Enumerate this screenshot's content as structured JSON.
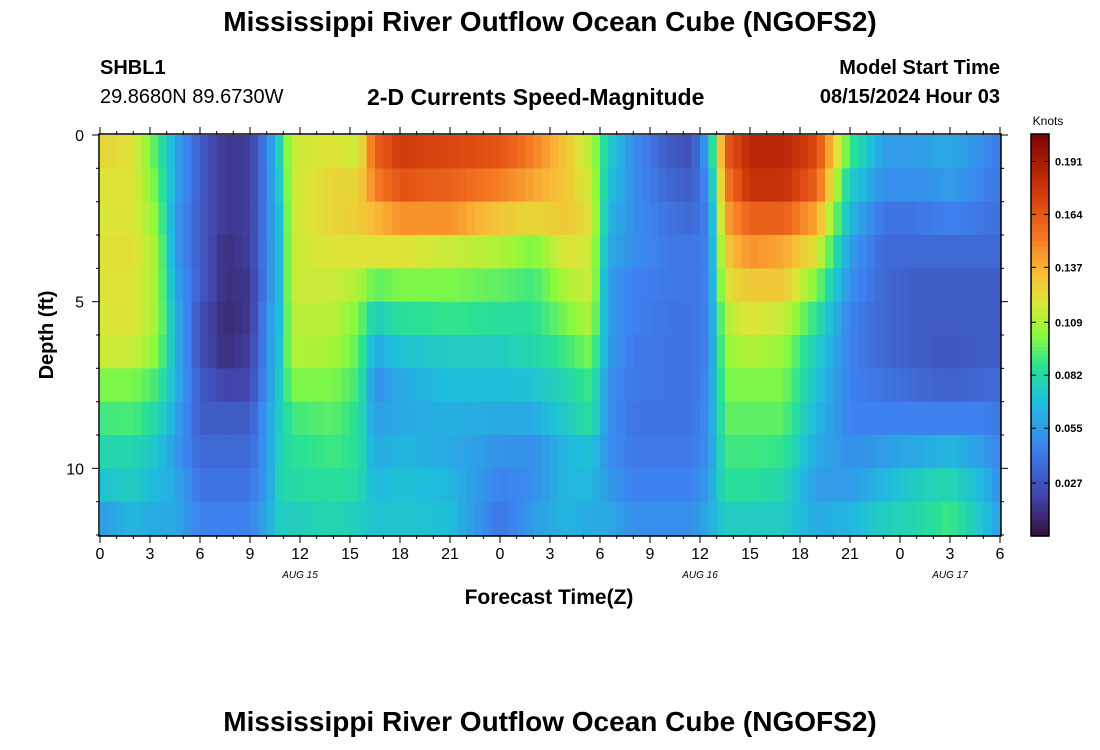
{
  "header": {
    "title": "Mississippi River Outflow Ocean Cube (NGOFS2)",
    "station_name": "SHBL1",
    "station_coords": "29.8680N  89.6730W",
    "subtitle": "2-D Currents Speed-Magnitude",
    "start_label": "Model Start Time",
    "start_value": "08/15/2024 Hour 03"
  },
  "footer": {
    "title": "Mississippi River Outflow Ocean Cube (NGOFS2)"
  },
  "chart_data": {
    "type": "heatmap",
    "xlabel": "Forecast Time(Z)",
    "ylabel": "Depth (ft)",
    "colorbar_label": "Knots",
    "colorbar_ticks": [
      0.191,
      0.164,
      0.137,
      0.109,
      0.082,
      0.055,
      0.027
    ],
    "colorbar_range": [
      0.0,
      0.205
    ],
    "xlim": [
      0,
      54
    ],
    "ylim": [
      0,
      12
    ],
    "y_inverted": true,
    "x_tick_labels": [
      "0",
      "3",
      "6",
      "9",
      "12",
      "15",
      "18",
      "21",
      "0",
      "3",
      "6",
      "9",
      "12",
      "15",
      "18",
      "21",
      "0",
      "3",
      "6"
    ],
    "y_tick_labels": [
      "0",
      "5",
      "10"
    ],
    "date_labels": [
      {
        "hour": 12,
        "text": "AUG 15"
      },
      {
        "hour": 36,
        "text": "AUG 16"
      },
      {
        "hour": 51,
        "text": "AUG 17"
      }
    ],
    "depths": [
      0.5,
      1.5,
      2.5,
      3.5,
      4.5,
      5.5,
      6.5,
      7.5,
      8.5,
      9.5,
      10.5,
      11.5
    ],
    "keyframes": [
      {
        "hour": 0,
        "speeds": [
          0.125,
          0.12,
          0.118,
          0.12,
          0.12,
          0.118,
          0.115,
          0.1,
          0.09,
          0.08,
          0.07,
          0.055
        ]
      },
      {
        "hour": 2,
        "speeds": [
          0.12,
          0.12,
          0.12,
          0.122,
          0.12,
          0.12,
          0.115,
          0.1,
          0.092,
          0.08,
          0.075,
          0.065
        ]
      },
      {
        "hour": 3.5,
        "speeds": [
          0.09,
          0.095,
          0.1,
          0.105,
          0.105,
          0.105,
          0.1,
          0.09,
          0.08,
          0.07,
          0.065,
          0.06
        ]
      },
      {
        "hour": 4.5,
        "speeds": [
          0.06,
          0.06,
          0.055,
          0.055,
          0.06,
          0.065,
          0.065,
          0.065,
          0.06,
          0.055,
          0.06,
          0.06
        ]
      },
      {
        "hour": 6,
        "speeds": [
          0.03,
          0.03,
          0.03,
          0.03,
          0.03,
          0.025,
          0.025,
          0.03,
          0.03,
          0.035,
          0.04,
          0.045
        ]
      },
      {
        "hour": 7.5,
        "speeds": [
          0.015,
          0.015,
          0.015,
          0.012,
          0.012,
          0.01,
          0.012,
          0.02,
          0.03,
          0.035,
          0.04,
          0.045
        ]
      },
      {
        "hour": 9,
        "speeds": [
          0.018,
          0.018,
          0.018,
          0.018,
          0.015,
          0.015,
          0.018,
          0.022,
          0.03,
          0.035,
          0.04,
          0.045
        ]
      },
      {
        "hour": 10,
        "speeds": [
          0.045,
          0.045,
          0.045,
          0.045,
          0.045,
          0.05,
          0.05,
          0.05,
          0.055,
          0.055,
          0.055,
          0.06
        ]
      },
      {
        "hour": 10.8,
        "speeds": [
          0.08,
          0.075,
          0.07,
          0.068,
          0.068,
          0.068,
          0.07,
          0.075,
          0.075,
          0.078,
          0.08,
          0.075
        ]
      },
      {
        "hour": 11.5,
        "speeds": [
          0.115,
          0.115,
          0.115,
          0.115,
          0.115,
          0.112,
          0.11,
          0.1,
          0.09,
          0.085,
          0.082,
          0.075
        ]
      },
      {
        "hour": 14,
        "speeds": [
          0.12,
          0.125,
          0.125,
          0.12,
          0.115,
          0.112,
          0.108,
          0.1,
          0.095,
          0.09,
          0.085,
          0.08
        ]
      },
      {
        "hour": 15.5,
        "speeds": [
          0.115,
          0.125,
          0.128,
          0.12,
          0.11,
          0.1,
          0.095,
          0.09,
          0.085,
          0.085,
          0.082,
          0.075
        ]
      },
      {
        "hour": 16.5,
        "speeds": [
          0.16,
          0.15,
          0.135,
          0.12,
          0.095,
          0.075,
          0.06,
          0.05,
          0.055,
          0.06,
          0.065,
          0.07
        ]
      },
      {
        "hour": 18,
        "speeds": [
          0.175,
          0.165,
          0.145,
          0.12,
          0.1,
          0.085,
          0.07,
          0.06,
          0.06,
          0.065,
          0.07,
          0.072
        ]
      },
      {
        "hour": 21,
        "speeds": [
          0.17,
          0.16,
          0.145,
          0.115,
          0.1,
          0.088,
          0.075,
          0.068,
          0.062,
          0.06,
          0.065,
          0.068
        ]
      },
      {
        "hour": 24,
        "speeds": [
          0.165,
          0.15,
          0.13,
          0.11,
          0.095,
          0.085,
          0.075,
          0.068,
          0.06,
          0.052,
          0.045,
          0.04
        ]
      },
      {
        "hour": 26,
        "speeds": [
          0.15,
          0.14,
          0.125,
          0.1,
          0.09,
          0.085,
          0.08,
          0.07,
          0.06,
          0.05,
          0.05,
          0.055
        ]
      },
      {
        "hour": 28,
        "speeds": [
          0.13,
          0.13,
          0.13,
          0.12,
          0.11,
          0.1,
          0.09,
          0.08,
          0.075,
          0.065,
          0.065,
          0.065
        ]
      },
      {
        "hour": 29.5,
        "speeds": [
          0.11,
          0.115,
          0.12,
          0.115,
          0.115,
          0.11,
          0.1,
          0.09,
          0.085,
          0.07,
          0.065,
          0.06
        ]
      },
      {
        "hour": 30.5,
        "speeds": [
          0.075,
          0.07,
          0.065,
          0.06,
          0.055,
          0.055,
          0.055,
          0.05,
          0.05,
          0.05,
          0.055,
          0.06
        ]
      },
      {
        "hour": 32,
        "speeds": [
          0.05,
          0.05,
          0.05,
          0.05,
          0.045,
          0.045,
          0.042,
          0.042,
          0.04,
          0.042,
          0.045,
          0.05
        ]
      },
      {
        "hour": 34,
        "speeds": [
          0.03,
          0.035,
          0.04,
          0.042,
          0.042,
          0.04,
          0.04,
          0.04,
          0.04,
          0.042,
          0.045,
          0.05
        ]
      },
      {
        "hour": 35.5,
        "speeds": [
          0.025,
          0.03,
          0.035,
          0.04,
          0.04,
          0.04,
          0.04,
          0.04,
          0.04,
          0.042,
          0.045,
          0.05
        ]
      },
      {
        "hour": 36.5,
        "speeds": [
          0.06,
          0.05,
          0.045,
          0.045,
          0.045,
          0.045,
          0.045,
          0.048,
          0.05,
          0.05,
          0.055,
          0.06
        ]
      },
      {
        "hour": 37.5,
        "speeds": [
          0.16,
          0.15,
          0.14,
          0.13,
          0.12,
          0.11,
          0.105,
          0.1,
          0.095,
          0.09,
          0.085,
          0.075
        ]
      },
      {
        "hour": 39,
        "speeds": [
          0.185,
          0.18,
          0.16,
          0.145,
          0.13,
          0.12,
          0.11,
          0.1,
          0.095,
          0.09,
          0.085,
          0.075
        ]
      },
      {
        "hour": 41,
        "speeds": [
          0.185,
          0.18,
          0.16,
          0.14,
          0.13,
          0.115,
          0.105,
          0.1,
          0.095,
          0.088,
          0.08,
          0.075
        ]
      },
      {
        "hour": 43,
        "speeds": [
          0.17,
          0.16,
          0.14,
          0.12,
          0.1,
          0.085,
          0.075,
          0.07,
          0.065,
          0.06,
          0.055,
          0.06
        ]
      },
      {
        "hour": 45,
        "speeds": [
          0.09,
          0.075,
          0.065,
          0.055,
          0.05,
          0.045,
          0.045,
          0.045,
          0.045,
          0.05,
          0.055,
          0.065
        ]
      },
      {
        "hour": 47,
        "speeds": [
          0.055,
          0.05,
          0.04,
          0.035,
          0.035,
          0.035,
          0.035,
          0.04,
          0.045,
          0.055,
          0.065,
          0.075
        ]
      },
      {
        "hour": 49,
        "speeds": [
          0.055,
          0.05,
          0.04,
          0.035,
          0.03,
          0.03,
          0.03,
          0.035,
          0.045,
          0.06,
          0.075,
          0.08
        ]
      },
      {
        "hour": 51,
        "speeds": [
          0.06,
          0.055,
          0.045,
          0.035,
          0.03,
          0.03,
          0.028,
          0.032,
          0.045,
          0.065,
          0.08,
          0.09
        ]
      },
      {
        "hour": 53,
        "speeds": [
          0.05,
          0.045,
          0.04,
          0.035,
          0.03,
          0.03,
          0.03,
          0.035,
          0.045,
          0.055,
          0.065,
          0.07
        ]
      },
      {
        "hour": 54,
        "speeds": [
          0.04,
          0.04,
          0.038,
          0.035,
          0.03,
          0.03,
          0.03,
          0.035,
          0.04,
          0.045,
          0.05,
          0.055
        ]
      }
    ]
  }
}
